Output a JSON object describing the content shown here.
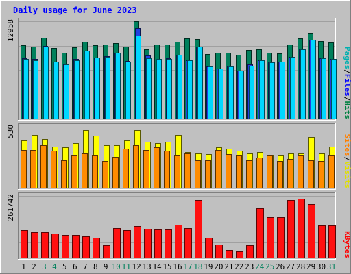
{
  "chart_data": {
    "type": "bar",
    "title": "Daily usage for June 2023",
    "categories": [
      "1",
      "2",
      "3",
      "4",
      "5",
      "6",
      "7",
      "8",
      "9",
      "10",
      "11",
      "12",
      "13",
      "14",
      "15",
      "16",
      "17",
      "18",
      "19",
      "20",
      "21",
      "22",
      "23",
      "24",
      "25",
      "26",
      "27",
      "28",
      "29",
      "30",
      "31"
    ],
    "weekend_days": [
      3,
      4,
      10,
      11,
      17,
      18,
      24,
      25,
      31
    ],
    "panels": [
      {
        "id": "hits",
        "ymax_label": "12958",
        "ymax": 12958,
        "legend": [
          {
            "label": "Pages",
            "color": "#00b0b0"
          },
          {
            "label": "Files",
            "color": "#0000ff"
          },
          {
            "label": "Hits",
            "color": "#008040"
          }
        ],
        "series": [
          {
            "name": "Hits",
            "color": "#00805c",
            "values": [
              9800,
              9600,
              10800,
              9400,
              8800,
              9500,
              10200,
              9800,
              9900,
              10000,
              9600,
              12958,
              9200,
              9900,
              9900,
              10200,
              10700,
              10600,
              8600,
              8800,
              8800,
              8500,
              9100,
              9200,
              8800,
              8700,
              9900,
              10700,
              11400,
              10300,
              10100
            ]
          },
          {
            "name": "Files",
            "color": "#2040e0",
            "values": [
              8000,
              7900,
              9700,
              7600,
              7300,
              7900,
              9000,
              8100,
              8300,
              8800,
              7700,
              12000,
              8400,
              7900,
              8000,
              8500,
              7800,
              9600,
              6900,
              6700,
              6900,
              6400,
              7200,
              7800,
              7500,
              7600,
              8200,
              9200,
              10500,
              8000,
              7900
            ]
          },
          {
            "name": "Pages",
            "color": "#00d8ff",
            "values": [
              7900,
              7800,
              9600,
              7600,
              7200,
              7800,
              9000,
              8100,
              8200,
              8800,
              7600,
              11000,
              8000,
              7900,
              7900,
              8500,
              7800,
              9600,
              6900,
              6700,
              6900,
              6400,
              7000,
              7800,
              7500,
              7600,
              8200,
              9200,
              10500,
              8000,
              7900
            ]
          }
        ]
      },
      {
        "id": "visits",
        "ymax_label": "530",
        "ymax": 530,
        "legend": [
          {
            "label": "Sites",
            "color": "#ff8000"
          },
          {
            "label": "Visits",
            "color": "#e0e000"
          }
        ],
        "series": [
          {
            "name": "Visits",
            "color": "#ffff00",
            "values": [
              410,
              460,
              420,
              360,
              350,
              390,
              500,
              450,
              370,
              370,
              410,
              500,
              400,
              390,
              400,
              460,
              310,
              300,
              290,
              350,
              340,
              320,
              300,
              310,
              280,
              280,
              300,
              300,
              440,
              300,
              360
            ]
          },
          {
            "name": "Sites",
            "color": "#ff8c00",
            "values": [
              330,
              330,
              370,
              320,
              240,
              280,
              300,
              280,
              230,
              270,
              340,
              370,
              330,
              350,
              320,
              280,
              300,
              240,
              240,
              330,
              290,
              280,
              240,
              260,
              280,
              230,
              250,
              280,
              240,
              230,
              280
            ]
          }
        ]
      },
      {
        "id": "kbytes",
        "ymax_label": "261742",
        "ymax": 261742,
        "legend": [
          {
            "label": "KBytes",
            "color": "#ff0000"
          }
        ],
        "series": [
          {
            "name": "KBytes",
            "color": "#ff1010",
            "values": [
              116000,
              108000,
              108000,
              101000,
              95000,
              96000,
              89000,
              85000,
              53000,
              125000,
              115000,
              133000,
              121000,
              119000,
              119000,
              141000,
              125000,
              243000,
              85000,
              56000,
              33000,
              25000,
              53000,
              208000,
              173000,
              173000,
              243000,
              251000,
              226000,
              137000,
              137000
            ]
          }
        ]
      }
    ]
  }
}
